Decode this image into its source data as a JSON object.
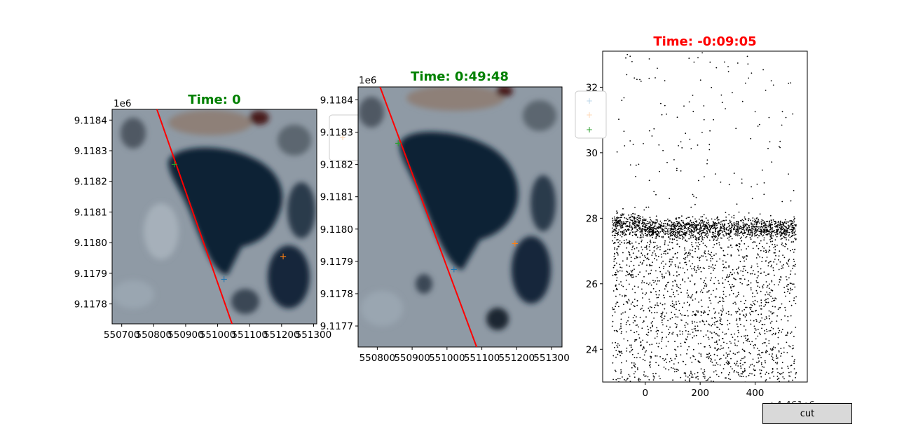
{
  "colors": {
    "title_green": "#008000",
    "title_red": "#ff0000",
    "track": "#ff0000",
    "marker_blue": "#1f77b4",
    "marker_orange": "#ff7f0e",
    "marker_green": "#2ca02c",
    "pond": "#0f2236",
    "ground": "#8f9aa5"
  },
  "button": {
    "label": "cut"
  },
  "chart_data": [
    {
      "type": "image",
      "title": "Time: 0",
      "title_color": "green",
      "xlim": [
        550670,
        551310
      ],
      "ylim": [
        9117735,
        9118435
      ],
      "y_offset_label": "1e6",
      "x_tick_values": [
        550700,
        550800,
        550900,
        551000,
        551100,
        551200,
        551300
      ],
      "x_ticks": [
        "550700",
        "550800",
        "550900",
        "551000",
        "551100",
        "551200",
        "551300"
      ],
      "y_tick_values": [
        9117800,
        9117900,
        9118000,
        9118100,
        9118200,
        9118300,
        9118400
      ],
      "y_ticks": [
        "9.1178",
        "9.1179",
        "9.1180",
        "9.1181",
        "9.1182",
        "9.1183",
        "9.1184"
      ],
      "track": [
        [
          550810,
          9118435
        ],
        [
          551045,
          9117735
        ]
      ],
      "markers": [
        {
          "color": "blue",
          "x": 551020,
          "y": 9117880
        },
        {
          "color": "orange",
          "x": 551205,
          "y": 9117955
        },
        {
          "color": "green",
          "x": 550865,
          "y": 9118255
        }
      ],
      "legend": "partially hidden, right of plot"
    },
    {
      "type": "image",
      "title": "Time: 0:49:48",
      "title_color": "green",
      "xlim": [
        550745,
        551330
      ],
      "ylim": [
        9117635,
        9118440
      ],
      "y_offset_label": "1e6",
      "x_tick_values": [
        550800,
        550900,
        551000,
        551100,
        551200,
        551300
      ],
      "x_ticks": [
        "550800",
        "550900",
        "551000",
        "551100",
        "551200",
        "551300"
      ],
      "y_tick_values": [
        9117700,
        9117800,
        9117900,
        9118000,
        9118100,
        9118200,
        9118300,
        9118400
      ],
      "y_ticks": [
        "9.1177",
        "9.1178",
        "9.1179",
        "9.1180",
        "9.1181",
        "9.1182",
        "9.1183",
        "9.1184"
      ],
      "track": [
        [
          550808,
          9118440
        ],
        [
          551085,
          9117635
        ]
      ],
      "markers": [
        {
          "color": "blue",
          "x": 551020,
          "y": 9117875
        },
        {
          "color": "orange",
          "x": 551195,
          "y": 9117955
        },
        {
          "color": "green",
          "x": 550860,
          "y": 9118265
        }
      ],
      "legend": "partially hidden, upper left of plot"
    },
    {
      "type": "scatter",
      "title": "Time: -0:09:05",
      "title_color": "red",
      "xlim": [
        -155,
        590
      ],
      "ylim": [
        23.0,
        33.1
      ],
      "x_tick_values": [
        0,
        200,
        400
      ],
      "x_ticks": [
        "0",
        "200",
        "400"
      ],
      "y_tick_values": [
        24,
        26,
        28,
        30,
        32
      ],
      "y_ticks": [
        "24",
        "26",
        "28",
        "30",
        "32"
      ],
      "x_offset_label": "+4.461e6",
      "point_color": "#000000",
      "series": [
        {
          "component": "surface_band",
          "x_range": [
            -120,
            550
          ],
          "y_center": 27.7,
          "y_spread": 0.15,
          "count": 1400
        },
        {
          "component": "subsurface_scatter",
          "x_range": [
            -120,
            550
          ],
          "y_range": [
            22.9,
            27.6
          ],
          "density": "decreasing with depth, denser near x 250-400",
          "count": 1900
        },
        {
          "component": "sparse_above",
          "x_range": [
            -120,
            550
          ],
          "y_range": [
            27.9,
            33.1
          ],
          "count": 150
        }
      ],
      "legend": "upper left, partially hidden"
    }
  ]
}
